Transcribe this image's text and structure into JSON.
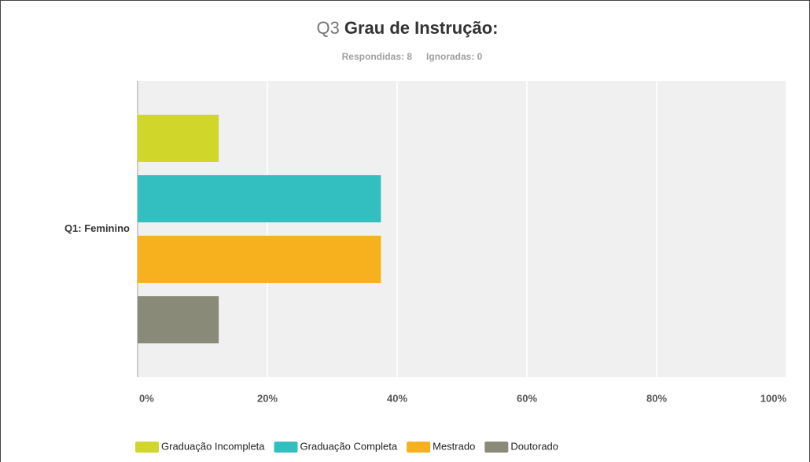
{
  "chart_data": {
    "type": "bar",
    "orientation": "horizontal",
    "question_number": "Q3",
    "title": "Grau de Instrução:",
    "answered": "Respondidas: 8",
    "skipped": "Ignoradas: 0",
    "categories": [
      "Q1: Feminino"
    ],
    "series": [
      {
        "name": "Graduação Incompleta",
        "color": "#d0d62a",
        "values": [
          12.5
        ]
      },
      {
        "name": "Graduação Completa",
        "color": "#33bfbf",
        "values": [
          37.5
        ]
      },
      {
        "name": "Mestrado",
        "color": "#f7b01e",
        "values": [
          37.5
        ]
      },
      {
        "name": "Doutorado",
        "color": "#8a8a78",
        "values": [
          12.5
        ]
      }
    ],
    "xlim": [
      0,
      100
    ],
    "xticks": [
      {
        "value": 0,
        "label": "0%"
      },
      {
        "value": 20,
        "label": "20%"
      },
      {
        "value": 40,
        "label": "40%"
      },
      {
        "value": 60,
        "label": "60%"
      },
      {
        "value": 80,
        "label": "80%"
      },
      {
        "value": 100,
        "label": "100%"
      }
    ],
    "grid": true,
    "legend": "bottom"
  }
}
